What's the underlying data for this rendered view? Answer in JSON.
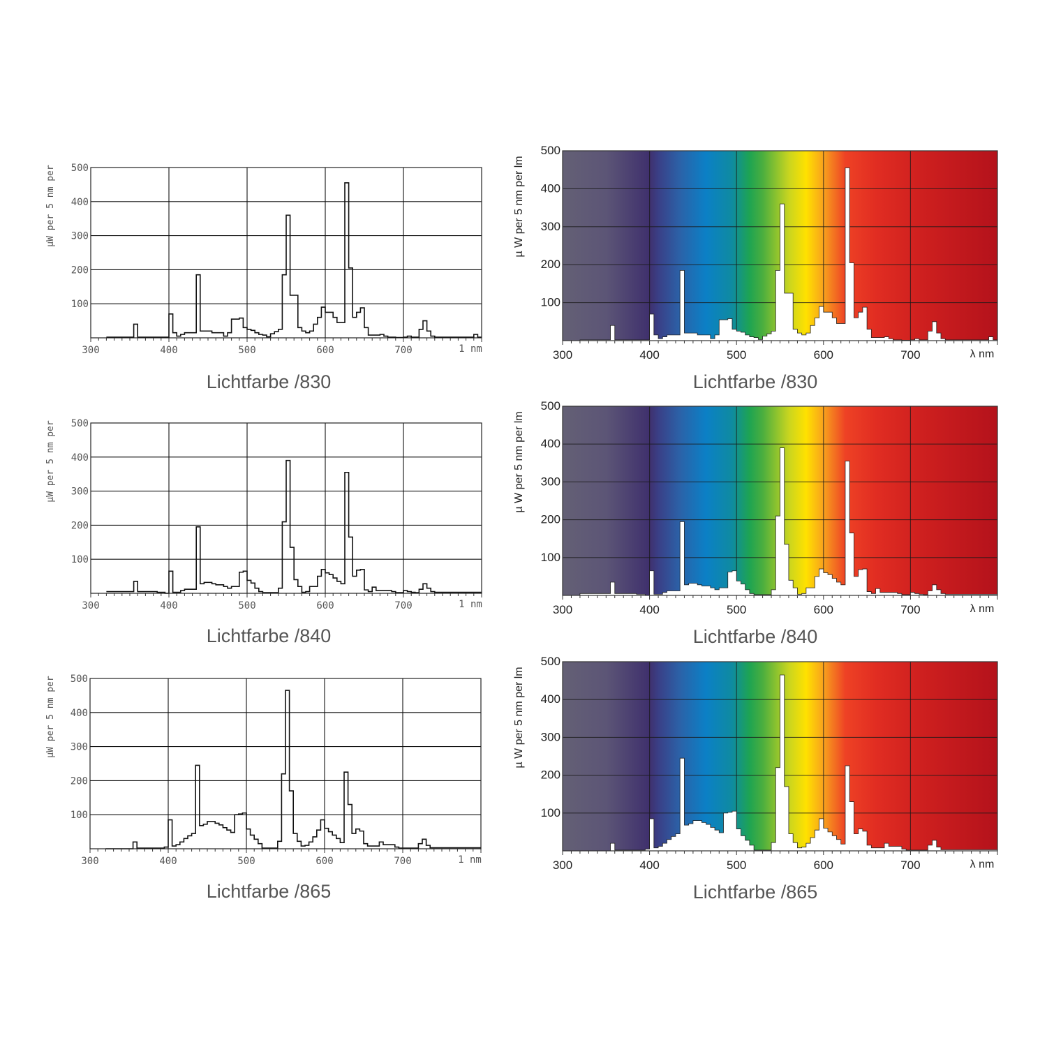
{
  "spectrum_colors": [
    "#646075",
    "#5c5576",
    "#3f306d",
    "#3a3f86",
    "#2b62a8",
    "#0b80c6",
    "#0f8ba0",
    "#1ea452",
    "#4aae3f",
    "#c8d520",
    "#ffe100",
    "#f8a11d",
    "#ee4225",
    "#e12d22",
    "#cf201f",
    "#b4121b"
  ],
  "line_color": "#111111",
  "chart_data": [
    {
      "type": "line",
      "style": "outline",
      "title": "Lichtfarbe /830",
      "ylabel": "µW per 5 nm per",
      "xlim": [
        300,
        800
      ],
      "ylim": [
        0,
        500
      ],
      "x_ticks": [
        300,
        400,
        500,
        600,
        700
      ],
      "x_tick_labels": [
        "300",
        "400",
        "500",
        "600",
        "700"
      ],
      "x_unit_label": "1 nm",
      "y_ticks": [
        100,
        200,
        300,
        400,
        500
      ],
      "y_tick_labels": [
        "100",
        "200",
        "300",
        "400",
        "500"
      ],
      "grid": true,
      "bin_start": 320,
      "bin_width": 5,
      "values": [
        2,
        2,
        2,
        2,
        2,
        2,
        2,
        40,
        2,
        2,
        2,
        2,
        2,
        2,
        2,
        2,
        70,
        15,
        5,
        10,
        15,
        15,
        15,
        185,
        20,
        20,
        20,
        15,
        15,
        15,
        5,
        15,
        55,
        55,
        58,
        30,
        25,
        22,
        15,
        10,
        8,
        3,
        12,
        18,
        25,
        185,
        360,
        125,
        125,
        30,
        20,
        15,
        20,
        40,
        60,
        90,
        75,
        75,
        60,
        45,
        45,
        455,
        205,
        60,
        75,
        88,
        30,
        8,
        8,
        8,
        10,
        5,
        2,
        2,
        1,
        1,
        2,
        5,
        2,
        2,
        25,
        50,
        20,
        5,
        2,
        2,
        2,
        2,
        2,
        2,
        2,
        2,
        2,
        2,
        10,
        2
      ]
    },
    {
      "type": "line",
      "style": "outline",
      "title": "Lichtfarbe /840",
      "ylabel": "µW per 5 nm per",
      "xlim": [
        300,
        800
      ],
      "ylim": [
        0,
        500
      ],
      "x_ticks": [
        300,
        400,
        500,
        600,
        700
      ],
      "x_tick_labels": [
        "300",
        "400",
        "500",
        "600",
        "700"
      ],
      "x_unit_label": "1 nm",
      "y_ticks": [
        100,
        200,
        300,
        400,
        500
      ],
      "y_tick_labels": [
        "100",
        "200",
        "300",
        "400",
        "500"
      ],
      "grid": true,
      "bin_start": 320,
      "bin_width": 5,
      "values": [
        5,
        5,
        5,
        5,
        5,
        5,
        5,
        35,
        5,
        5,
        5,
        5,
        5,
        3,
        3,
        0,
        65,
        3,
        3,
        8,
        12,
        12,
        12,
        195,
        28,
        32,
        32,
        28,
        25,
        25,
        20,
        15,
        20,
        20,
        62,
        65,
        38,
        30,
        15,
        5,
        2,
        2,
        2,
        2,
        15,
        210,
        390,
        135,
        40,
        20,
        3,
        5,
        20,
        20,
        50,
        70,
        60,
        55,
        45,
        35,
        28,
        355,
        165,
        50,
        68,
        70,
        10,
        5,
        18,
        8,
        8,
        8,
        8,
        5,
        2,
        2,
        8,
        5,
        3,
        2,
        12,
        28,
        15,
        5,
        3,
        3,
        3,
        3,
        3,
        3,
        3,
        3,
        3,
        3,
        3,
        3
      ]
    },
    {
      "type": "line",
      "style": "outline",
      "title": "Lichtfarbe /865",
      "ylabel": "µW per 5 nm per",
      "xlim": [
        300,
        800
      ],
      "ylim": [
        0,
        500
      ],
      "x_ticks": [
        300,
        400,
        500,
        600,
        700
      ],
      "x_tick_labels": [
        "300",
        "400",
        "500",
        "600",
        "700"
      ],
      "x_unit_label": "1 nm",
      "y_ticks": [
        100,
        200,
        300,
        400,
        500
      ],
      "y_tick_labels": [
        "100",
        "200",
        "300",
        "400",
        "500"
      ],
      "grid": true,
      "bin_start": 320,
      "bin_width": 5,
      "values": [
        0,
        0,
        0,
        0,
        0,
        0,
        0,
        20,
        2,
        2,
        2,
        2,
        2,
        2,
        2,
        5,
        85,
        8,
        12,
        20,
        30,
        38,
        45,
        245,
        68,
        72,
        80,
        80,
        75,
        70,
        62,
        55,
        48,
        100,
        102,
        105,
        58,
        40,
        28,
        15,
        2,
        2,
        2,
        2,
        22,
        220,
        465,
        170,
        45,
        22,
        8,
        10,
        20,
        35,
        55,
        85,
        60,
        50,
        40,
        30,
        18,
        225,
        130,
        45,
        58,
        52,
        15,
        8,
        8,
        8,
        20,
        12,
        12,
        12,
        5,
        2,
        2,
        2,
        2,
        2,
        15,
        28,
        10,
        3,
        3,
        3,
        3,
        3,
        3,
        3,
        3,
        3,
        3,
        3,
        3,
        3
      ]
    },
    {
      "type": "line",
      "style": "spectrum",
      "title": "Lichtfarbe /830",
      "ylabel": "µ W per 5 nm per lm",
      "xlim": [
        300,
        800
      ],
      "ylim": [
        0,
        500
      ],
      "x_ticks": [
        300,
        400,
        500,
        600,
        700
      ],
      "x_tick_labels": [
        "300",
        "400",
        "500",
        "600",
        "700"
      ],
      "x_unit_label": "λ nm",
      "y_ticks": [
        100,
        200,
        300,
        400,
        500
      ],
      "y_tick_labels": [
        "100",
        "200",
        "300",
        "400",
        "500"
      ],
      "grid": true,
      "bin_start": 320,
      "bin_width": 5,
      "values": [
        2,
        2,
        2,
        2,
        2,
        2,
        2,
        40,
        2,
        2,
        2,
        2,
        2,
        2,
        2,
        2,
        70,
        15,
        5,
        10,
        15,
        15,
        15,
        185,
        20,
        20,
        20,
        15,
        15,
        15,
        5,
        15,
        55,
        55,
        58,
        30,
        25,
        22,
        15,
        10,
        8,
        3,
        12,
        18,
        25,
        185,
        360,
        125,
        125,
        30,
        20,
        15,
        20,
        40,
        60,
        90,
        75,
        75,
        60,
        45,
        45,
        455,
        205,
        60,
        75,
        88,
        30,
        8,
        8,
        8,
        10,
        5,
        2,
        2,
        1,
        1,
        2,
        5,
        2,
        2,
        25,
        50,
        20,
        5,
        2,
        2,
        2,
        2,
        2,
        2,
        2,
        2,
        2,
        2,
        10,
        2
      ]
    },
    {
      "type": "line",
      "style": "spectrum",
      "title": "Lichtfarbe /840",
      "ylabel": "µ W per 5 nm per lm",
      "xlim": [
        300,
        800
      ],
      "ylim": [
        0,
        500
      ],
      "x_ticks": [
        300,
        400,
        500,
        600,
        700
      ],
      "x_tick_labels": [
        "300",
        "400",
        "500",
        "600",
        "700"
      ],
      "x_unit_label": "λ nm",
      "y_ticks": [
        100,
        200,
        300,
        400,
        500
      ],
      "y_tick_labels": [
        "100",
        "200",
        "300",
        "400",
        "500"
      ],
      "grid": true,
      "bin_start": 320,
      "bin_width": 5,
      "values": [
        5,
        5,
        5,
        5,
        5,
        5,
        5,
        35,
        5,
        5,
        5,
        5,
        5,
        3,
        3,
        0,
        65,
        3,
        3,
        8,
        12,
        12,
        12,
        195,
        28,
        32,
        32,
        28,
        25,
        25,
        20,
        15,
        20,
        20,
        62,
        65,
        38,
        30,
        15,
        5,
        2,
        2,
        2,
        2,
        15,
        210,
        390,
        135,
        40,
        20,
        3,
        5,
        20,
        20,
        50,
        70,
        60,
        55,
        45,
        35,
        28,
        355,
        165,
        50,
        68,
        70,
        10,
        5,
        18,
        8,
        8,
        8,
        8,
        5,
        2,
        2,
        8,
        5,
        3,
        2,
        12,
        28,
        15,
        5,
        3,
        3,
        3,
        3,
        3,
        3,
        3,
        3,
        3,
        3,
        3,
        3
      ]
    },
    {
      "type": "line",
      "style": "spectrum",
      "title": "Lichtfarbe /865",
      "ylabel": "µ W per 5 nm per lm",
      "xlim": [
        300,
        800
      ],
      "ylim": [
        0,
        500
      ],
      "x_ticks": [
        300,
        400,
        500,
        600,
        700
      ],
      "x_tick_labels": [
        "300",
        "400",
        "500",
        "600",
        "700"
      ],
      "x_unit_label": "λ nm",
      "y_ticks": [
        100,
        200,
        300,
        400,
        500
      ],
      "y_tick_labels": [
        "100",
        "200",
        "300",
        "400",
        "500"
      ],
      "grid": true,
      "bin_start": 320,
      "bin_width": 5,
      "values": [
        0,
        0,
        0,
        0,
        0,
        0,
        0,
        20,
        2,
        2,
        2,
        2,
        2,
        2,
        2,
        5,
        85,
        8,
        12,
        20,
        30,
        38,
        45,
        245,
        68,
        72,
        80,
        80,
        75,
        70,
        62,
        55,
        48,
        100,
        102,
        105,
        58,
        40,
        28,
        15,
        2,
        2,
        2,
        2,
        22,
        220,
        465,
        170,
        45,
        22,
        8,
        10,
        20,
        35,
        55,
        85,
        60,
        50,
        40,
        30,
        18,
        225,
        130,
        45,
        58,
        52,
        15,
        8,
        8,
        8,
        20,
        12,
        12,
        12,
        5,
        2,
        2,
        2,
        2,
        2,
        15,
        28,
        10,
        3,
        3,
        3,
        3,
        3,
        3,
        3,
        3,
        3,
        3,
        3,
        3,
        3
      ]
    }
  ]
}
